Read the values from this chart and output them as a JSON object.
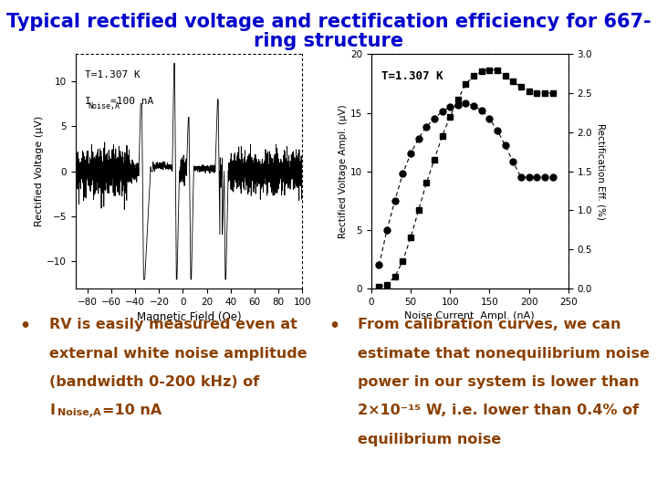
{
  "title_line1": "Typical rectified voltage and rectification efficiency for 667-",
  "title_line2": "ring structure",
  "title_color": "#0000CC",
  "title_fontsize": 15,
  "bg_color": "#FFFFFF",
  "left_plot": {
    "xlabel": "Magnetic Field (Oe)",
    "ylabel": "Rectified Voltage (μV)",
    "annotation1": "T=1.307 K",
    "annotation2_main": "I",
    "annotation2_sub": "Noise,A",
    "annotation2_rest": "=100 nA",
    "xlim": [
      -90,
      100
    ],
    "ylim": [
      -13,
      13
    ],
    "xticks": [
      -80,
      -60,
      -40,
      -20,
      0,
      20,
      40,
      60,
      80,
      100
    ],
    "yticks": [
      -10,
      -5,
      0,
      5,
      10
    ]
  },
  "right_plot": {
    "xlabel": "Noise Current  Ampl. (nA)",
    "ylabel_left": "Rectified Voltage Ampl. (μV)",
    "ylabel_right": "Rectification Eff. (%)",
    "annotation": "T=1.307 K",
    "xlim": [
      0,
      250
    ],
    "ylim_left": [
      0,
      20
    ],
    "ylim_right": [
      0,
      3.0
    ],
    "xticks": [
      0,
      50,
      100,
      150,
      200,
      250
    ],
    "yticks_left": [
      0,
      5,
      10,
      15,
      20
    ],
    "yticks_right": [
      0.0,
      0.5,
      1.0,
      1.5,
      2.0,
      2.5,
      3.0
    ],
    "curve1_x": [
      10,
      20,
      30,
      40,
      50,
      60,
      70,
      80,
      90,
      100,
      110,
      120,
      130,
      140,
      150,
      160,
      170,
      180,
      190,
      200,
      210,
      220,
      230
    ],
    "curve1_y": [
      2.0,
      5.0,
      7.5,
      9.8,
      11.5,
      12.8,
      13.8,
      14.5,
      15.1,
      15.5,
      15.7,
      15.8,
      15.6,
      15.2,
      14.5,
      13.5,
      12.2,
      10.8,
      9.5,
      9.5,
      9.5,
      9.5,
      9.5
    ],
    "curve2_x": [
      10,
      20,
      30,
      40,
      50,
      60,
      70,
      80,
      90,
      100,
      110,
      120,
      130,
      140,
      150,
      160,
      170,
      180,
      190,
      200,
      210,
      220,
      230
    ],
    "curve2_y": [
      0.02,
      0.05,
      0.15,
      0.35,
      0.65,
      1.0,
      1.35,
      1.65,
      1.95,
      2.2,
      2.42,
      2.62,
      2.72,
      2.78,
      2.8,
      2.8,
      2.72,
      2.65,
      2.58,
      2.52,
      2.5,
      2.5,
      2.5
    ]
  },
  "bullet1_text": "RV is easily measured even at\nexternal white noise amplitude\n(bandwidth 0-200 kHz) of",
  "bullet1_line4a": "I",
  "bullet1_line4b": "Noise,A",
  "bullet1_line4c": "=10 nA",
  "bullet2_text": "From calibration curves, we can\nestimate that nonequilibrium noise\npower in our system is lower than\n2×10⁻¹⁵ W, i.e. lower than 0.4% of\nequilibrium noise",
  "bullet_color": "#8B4000",
  "bullet_fontsize": 11.5
}
